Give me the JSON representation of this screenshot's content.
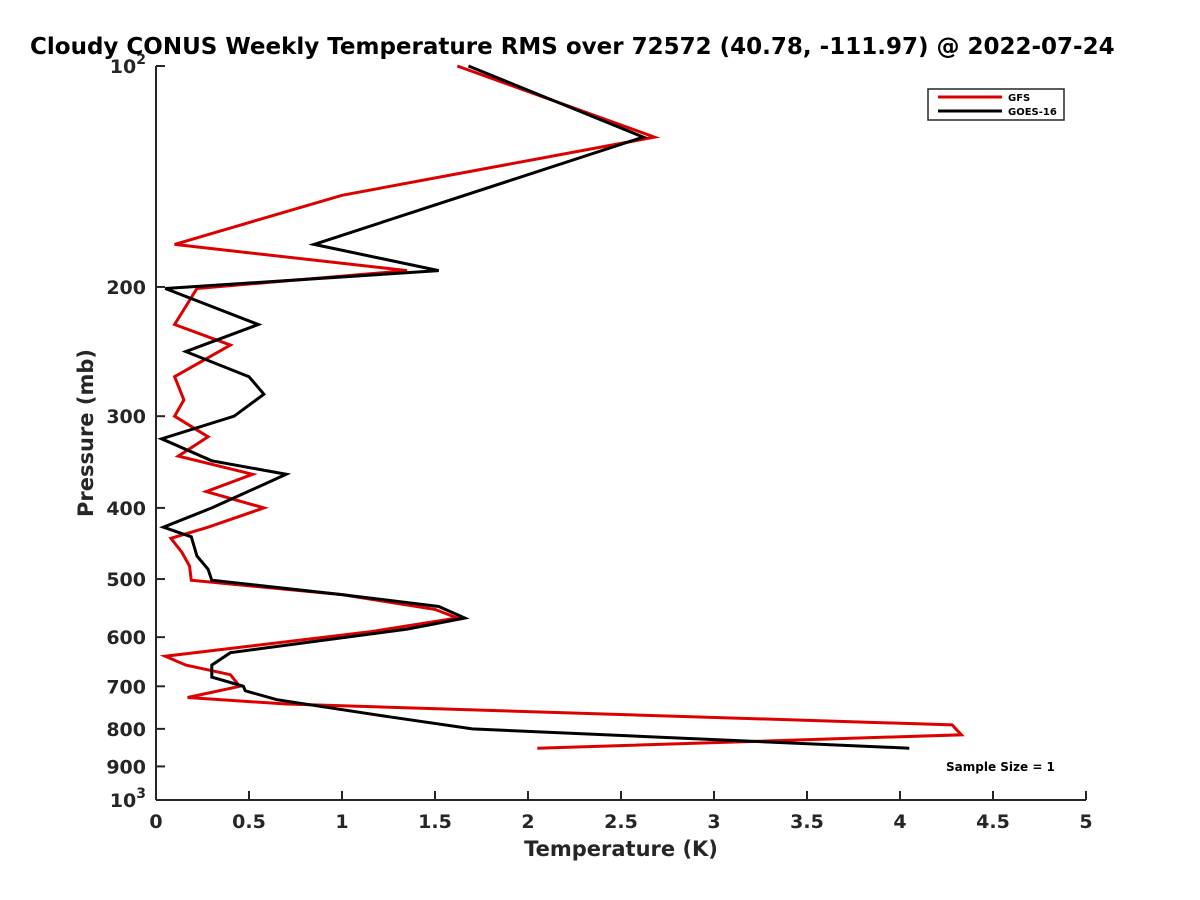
{
  "chart_data": {
    "type": "line",
    "title": "Cloudy CONUS Weekly Temperature RMS over 72572 (40.78, -111.97) @ 2022-07-24",
    "xlabel": "Temperature (K)",
    "ylabel": "Pressure (mb)",
    "xlim": [
      0,
      5
    ],
    "ylim": [
      100,
      1000
    ],
    "y_scale": "log",
    "y_reversed": true,
    "grid": false,
    "legend_position": "top-right",
    "x_ticks": [
      {
        "value": 0,
        "label": "0"
      },
      {
        "value": 0.5,
        "label": "0.5"
      },
      {
        "value": 1,
        "label": "1"
      },
      {
        "value": 1.5,
        "label": "1.5"
      },
      {
        "value": 2,
        "label": "2"
      },
      {
        "value": 2.5,
        "label": "2.5"
      },
      {
        "value": 3,
        "label": "3"
      },
      {
        "value": 3.5,
        "label": "3.5"
      },
      {
        "value": 4,
        "label": "4"
      },
      {
        "value": 4.5,
        "label": "4.5"
      },
      {
        "value": 5,
        "label": "5"
      }
    ],
    "y_ticks": [
      {
        "value": 100,
        "base": "10",
        "exp": "2"
      },
      {
        "value": 200,
        "label": "200"
      },
      {
        "value": 300,
        "label": "300"
      },
      {
        "value": 400,
        "label": "400"
      },
      {
        "value": 500,
        "label": "500"
      },
      {
        "value": 600,
        "label": "600"
      },
      {
        "value": 700,
        "label": "700"
      },
      {
        "value": 800,
        "label": "800"
      },
      {
        "value": 900,
        "label": "900"
      },
      {
        "value": 1000,
        "base": "10",
        "exp": "3"
      }
    ],
    "series": [
      {
        "name": "GFS",
        "color": "#dd0000",
        "points": [
          {
            "x": 1.62,
            "y": 100
          },
          {
            "x": 2.68,
            "y": 125
          },
          {
            "x": 1.0,
            "y": 150
          },
          {
            "x": 0.1,
            "y": 175
          },
          {
            "x": 1.35,
            "y": 190
          },
          {
            "x": 0.22,
            "y": 201
          },
          {
            "x": 0.1,
            "y": 225
          },
          {
            "x": 0.4,
            "y": 240
          },
          {
            "x": 0.1,
            "y": 265
          },
          {
            "x": 0.15,
            "y": 285
          },
          {
            "x": 0.1,
            "y": 300
          },
          {
            "x": 0.28,
            "y": 320
          },
          {
            "x": 0.12,
            "y": 340
          },
          {
            "x": 0.52,
            "y": 360
          },
          {
            "x": 0.27,
            "y": 380
          },
          {
            "x": 0.58,
            "y": 400
          },
          {
            "x": 0.28,
            "y": 425
          },
          {
            "x": 0.08,
            "y": 440
          },
          {
            "x": 0.14,
            "y": 460
          },
          {
            "x": 0.18,
            "y": 480
          },
          {
            "x": 0.19,
            "y": 502
          },
          {
            "x": 1.0,
            "y": 525
          },
          {
            "x": 1.5,
            "y": 550
          },
          {
            "x": 1.62,
            "y": 565
          },
          {
            "x": 1.15,
            "y": 590
          },
          {
            "x": 0.05,
            "y": 637
          },
          {
            "x": 0.16,
            "y": 655
          },
          {
            "x": 0.4,
            "y": 675
          },
          {
            "x": 0.45,
            "y": 700
          },
          {
            "x": 0.17,
            "y": 725
          },
          {
            "x": 0.7,
            "y": 740
          },
          {
            "x": 4.28,
            "y": 790
          },
          {
            "x": 4.33,
            "y": 815
          },
          {
            "x": 2.05,
            "y": 850
          }
        ]
      },
      {
        "name": "GOES-16",
        "color": "#000000",
        "points": [
          {
            "x": 1.68,
            "y": 100
          },
          {
            "x": 2.62,
            "y": 125
          },
          {
            "x": 0.85,
            "y": 175
          },
          {
            "x": 1.52,
            "y": 190
          },
          {
            "x": 0.05,
            "y": 201
          },
          {
            "x": 0.55,
            "y": 225
          },
          {
            "x": 0.16,
            "y": 245
          },
          {
            "x": 0.5,
            "y": 265
          },
          {
            "x": 0.58,
            "y": 280
          },
          {
            "x": 0.42,
            "y": 300
          },
          {
            "x": 0.03,
            "y": 322
          },
          {
            "x": 0.3,
            "y": 345
          },
          {
            "x": 0.7,
            "y": 360
          },
          {
            "x": 0.3,
            "y": 400
          },
          {
            "x": 0.04,
            "y": 425
          },
          {
            "x": 0.19,
            "y": 438
          },
          {
            "x": 0.22,
            "y": 465
          },
          {
            "x": 0.28,
            "y": 485
          },
          {
            "x": 0.3,
            "y": 502
          },
          {
            "x": 1.0,
            "y": 525
          },
          {
            "x": 1.52,
            "y": 545
          },
          {
            "x": 1.66,
            "y": 565
          },
          {
            "x": 1.35,
            "y": 585
          },
          {
            "x": 0.4,
            "y": 630
          },
          {
            "x": 0.3,
            "y": 655
          },
          {
            "x": 0.3,
            "y": 680
          },
          {
            "x": 0.47,
            "y": 700
          },
          {
            "x": 0.48,
            "y": 710
          },
          {
            "x": 0.65,
            "y": 730
          },
          {
            "x": 1.25,
            "y": 770
          },
          {
            "x": 1.7,
            "y": 800
          },
          {
            "x": 4.05,
            "y": 850
          }
        ]
      }
    ],
    "annotations": [
      {
        "text": "Sample Size = 1"
      }
    ]
  }
}
